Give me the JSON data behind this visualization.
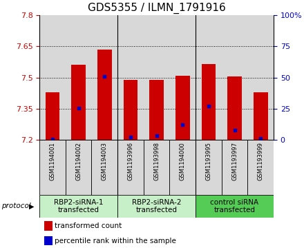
{
  "title": "GDS5355 / ILMN_1791916",
  "samples": [
    "GSM1194001",
    "GSM1194002",
    "GSM1194003",
    "GSM1193996",
    "GSM1193998",
    "GSM1194000",
    "GSM1193995",
    "GSM1193997",
    "GSM1193999"
  ],
  "red_bar_tops": [
    7.43,
    7.56,
    7.635,
    7.488,
    7.49,
    7.51,
    7.565,
    7.505,
    7.43
  ],
  "blue_marker_values": [
    7.205,
    7.353,
    7.505,
    7.213,
    7.222,
    7.272,
    7.362,
    7.248,
    7.207
  ],
  "bar_base": 7.2,
  "ylim": [
    7.2,
    7.8
  ],
  "y_ticks": [
    7.2,
    7.35,
    7.5,
    7.65,
    7.8
  ],
  "y2_ticks": [
    0,
    25,
    50,
    75,
    100
  ],
  "y2_labels": [
    "0",
    "25",
    "50",
    "75",
    "100%"
  ],
  "red_color": "#cc0000",
  "blue_color": "#0000cc",
  "bar_width": 0.55,
  "protocols": [
    {
      "label": "RBP2-siRNA-1\ntransfected",
      "start": 0,
      "end": 2,
      "color": "#c8f0c8"
    },
    {
      "label": "RBP2-siRNA-2\ntransfected",
      "start": 3,
      "end": 5,
      "color": "#c8f0c8"
    },
    {
      "label": "control siRNA\ntransfected",
      "start": 6,
      "end": 8,
      "color": "#55cc55"
    }
  ],
  "protocol_label": "protocol",
  "legend_items": [
    {
      "color": "#cc0000",
      "label": "transformed count"
    },
    {
      "color": "#0000cc",
      "label": "percentile rank within the sample"
    }
  ],
  "bg_color": "#d8d8d8",
  "title_fontsize": 11,
  "tick_fontsize": 8,
  "sample_fontsize": 6,
  "proto_fontsize": 7.5,
  "legend_fontsize": 7.5
}
